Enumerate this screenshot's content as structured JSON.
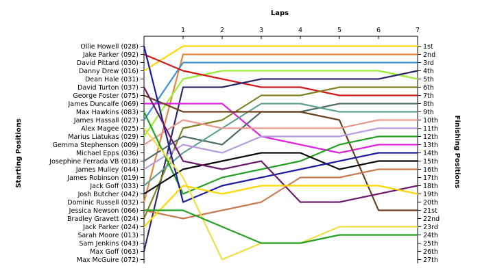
{
  "chart_data": {
    "type": "line",
    "title": "",
    "xlabel": "Laps",
    "ylabel_left": "Starting Positions",
    "ylabel_right": "Finishing Positions",
    "x": [
      0,
      1,
      2,
      3,
      4,
      5,
      6,
      7
    ],
    "x_tick_labels": [
      "1",
      "2",
      "3",
      "4",
      "5",
      "6",
      "7"
    ],
    "y_reversed": true,
    "ylim": [
      1,
      27
    ],
    "starting_labels": [
      "Ollie Howell (028)",
      "Jake Parker (092)",
      "David Pittard (030)",
      "Danny Drew (016)",
      "Dean Hale (031)",
      "David Turton (037)",
      "George Foster (075)",
      "James Duncalfe (069)",
      "Max Hawkins (083)",
      "James Hassall (027)",
      "Alex Magee (025)",
      "Marius Liatukas (029)",
      "Gemma Stephenson (009)",
      "Michael Epps (036)",
      "Josephine Ferrada VB (018)",
      "James Mulley (044)",
      "James Robinson (019)",
      "Jack Goff (033)",
      "Josh Butcher (042)",
      "Dominic Russell (032)",
      "Jessica Newson (066)",
      "Bradley Gravett (024)",
      "Jack Parker (024)",
      "Sarah Moore (013)",
      "Sam Jenkins (043)",
      "Max Goff (063)",
      "Max McGuire (072)"
    ],
    "finishing_labels": [
      "1st",
      "2nd",
      "3rd",
      "4th",
      "5th",
      "6th",
      "7th",
      "8th",
      "9th",
      "10th",
      "11th",
      "12th",
      "13th",
      "14th",
      "15th",
      "16th",
      "17th",
      "18th",
      "19th",
      "20th",
      "21st",
      "22nd",
      "23rd",
      "24th",
      "25th",
      "26th",
      "27th"
    ],
    "series": [
      {
        "color": "#ffd700",
        "values": [
          4,
          1,
          1,
          1,
          1,
          1,
          1,
          1
        ]
      },
      {
        "color": "#e8843a",
        "values": [
          20,
          2,
          2,
          2,
          2,
          2,
          2,
          2
        ]
      },
      {
        "color": "#3a8fd6",
        "values": [
          10,
          3,
          3,
          3,
          3,
          3,
          3,
          3
        ]
      },
      {
        "color": "#99ee33",
        "values": [
          12,
          5,
          4,
          4,
          4,
          4,
          4,
          5
        ]
      },
      {
        "color": "#d01818",
        "values": [
          2,
          4,
          5,
          6,
          6,
          7,
          7,
          7
        ]
      },
      {
        "color": "#2a2a6a",
        "values": [
          26,
          6,
          6,
          5,
          5,
          5,
          5,
          4
        ]
      },
      {
        "color": "#808020",
        "values": [
          22,
          11,
          10,
          7,
          7,
          6,
          6,
          6
        ]
      },
      {
        "color": "#dd22dd",
        "values": [
          8,
          8,
          8,
          12,
          13,
          14,
          13,
          13
        ]
      },
      {
        "color": "#4f6c6c",
        "values": [
          15,
          12,
          13,
          9,
          9,
          8,
          8,
          8
        ]
      },
      {
        "color": "#5e9f95",
        "values": [
          18,
          14,
          11,
          8,
          8,
          9,
          9,
          9
        ]
      },
      {
        "color": "#6b3e1c",
        "values": [
          7,
          9,
          9,
          9,
          9,
          10,
          21,
          21
        ]
      },
      {
        "color": "#e8998c",
        "values": [
          13,
          10,
          11,
          11,
          11,
          11,
          10,
          10
        ]
      },
      {
        "color": "#b79adf",
        "values": [
          16,
          13,
          14,
          12,
          12,
          12,
          11,
          11
        ]
      },
      {
        "color": "#23a023",
        "values": [
          9,
          19,
          17,
          16,
          15,
          13,
          12,
          12
        ]
      },
      {
        "color": "#0a0a0a",
        "values": [
          19,
          16,
          15,
          14,
          14,
          16,
          15,
          15
        ]
      },
      {
        "color": "#1c1ca0",
        "values": [
          1,
          20,
          18,
          17,
          16,
          15,
          14,
          14
        ]
      },
      {
        "color": "#c67a4f",
        "values": [
          21,
          22,
          21,
          20,
          17,
          17,
          16,
          16
        ]
      },
      {
        "color": "#6c1c6c",
        "values": [
          6,
          15,
          16,
          15,
          20,
          20,
          19,
          18
        ]
      },
      {
        "color": "#eedd44",
        "values": [
          11,
          17,
          27,
          25,
          25,
          23,
          23,
          23
        ]
      },
      {
        "color": "#ffd700",
        "values": [
          23,
          18,
          19,
          18,
          18,
          18,
          18,
          19
        ]
      },
      {
        "color": "#23a023",
        "values": [
          21,
          21,
          23,
          25,
          25,
          24,
          24,
          24
        ]
      }
    ]
  }
}
